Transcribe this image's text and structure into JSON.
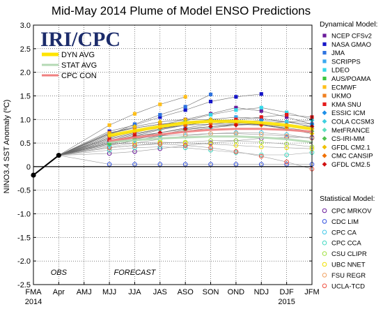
{
  "chart_data": {
    "type": "line",
    "title": "Mid-May 2014 Plume of Model ENSO Predictions",
    "ylabel": "NINO3.4 SST Anomaly (ºC)",
    "logo": "IRI/CPC",
    "ylim": [
      -2.5,
      3.0
    ],
    "yticks": [
      "3.0",
      "2.5",
      "2.0",
      "1.5",
      "1.0",
      "0.5",
      "0",
      "-0.5",
      "-1.0",
      "-1.5",
      "-2.0",
      "-2.5"
    ],
    "ytick_values": [
      3.0,
      2.5,
      2.0,
      1.5,
      1.0,
      0.5,
      0,
      -0.5,
      -1.0,
      -1.5,
      -2.0,
      -2.5
    ],
    "categories": [
      "FMA",
      "Apr",
      "AMJ",
      "MJJ",
      "JJA",
      "JAS",
      "ASO",
      "SON",
      "OND",
      "NDJ",
      "DJF",
      "JFM"
    ],
    "year_labels": [
      {
        "label": "2014",
        "index": 0
      },
      {
        "label": "2015",
        "index": 10
      }
    ],
    "phase_labels": [
      {
        "label": "OBS",
        "index": 1
      },
      {
        "label": "FORECAST",
        "index": 4
      }
    ],
    "grid": true,
    "legend_position": "right",
    "observed": {
      "name": "OBS",
      "x_index": [
        0,
        1
      ],
      "values": [
        -0.18,
        0.24
      ]
    },
    "averages": [
      {
        "name": "DYN AVG",
        "color": "#ffe400",
        "values": [
          0.66,
          0.76,
          0.85,
          0.93,
          0.96,
          0.96,
          0.93,
          0.88,
          0.8
        ]
      },
      {
        "name": "STAT AVG",
        "color": "#b4d9b4",
        "values": [
          0.52,
          0.56,
          0.6,
          0.62,
          0.64,
          0.64,
          0.62,
          0.58,
          0.52
        ]
      },
      {
        "name": "CPC CON",
        "color": "#f08080",
        "values": [
          0.55,
          0.62,
          0.68,
          0.74,
          0.78,
          0.8,
          0.8,
          0.78,
          0.74
        ]
      }
    ],
    "dynamical_header": "Dynamical Model:",
    "statistical_header": "Statistical Model:",
    "dynamical_models": [
      {
        "name": "NCEP CFSv2",
        "color": "#6a1b9a",
        "marker": "square",
        "values": [
          0.62,
          0.75,
          0.88,
          1.0,
          1.12,
          1.25,
          1.18,
          1.05,
          0.9
        ]
      },
      {
        "name": "NASA GMAO",
        "color": "#1515c8",
        "marker": "square",
        "values": [
          0.75,
          0.88,
          1.05,
          1.2,
          1.38,
          1.48,
          1.54,
          null,
          null
        ]
      },
      {
        "name": "JMA",
        "color": "#2f74e0",
        "marker": "square",
        "values": [
          0.68,
          0.9,
          1.1,
          1.27,
          1.53,
          null,
          null,
          null,
          null
        ]
      },
      {
        "name": "SCRIPPS",
        "color": "#3aa8f0",
        "marker": "square",
        "values": [
          0.55,
          0.68,
          0.8,
          0.92,
          1.0,
          1.05,
          1.02,
          0.95,
          0.85
        ]
      },
      {
        "name": "LDEO",
        "color": "#36d8e8",
        "marker": "square",
        "values": [
          0.6,
          0.72,
          0.85,
          0.97,
          1.1,
          1.2,
          1.25,
          1.15,
          1.0
        ]
      },
      {
        "name": "AUS/POAMA",
        "color": "#3cc43c",
        "marker": "square",
        "values": [
          0.7,
          0.82,
          0.9,
          0.95,
          0.98,
          0.95,
          0.9,
          0.8,
          null
        ]
      },
      {
        "name": "ECMWF",
        "color": "#ffbf1a",
        "marker": "square",
        "values": [
          0.88,
          1.12,
          1.32,
          1.48,
          null,
          null,
          null,
          null,
          null
        ]
      },
      {
        "name": "UKMO",
        "color": "#f08020",
        "marker": "square",
        "values": [
          0.72,
          0.82,
          0.9,
          0.92,
          0.94,
          0.92,
          0.9,
          null,
          null
        ]
      },
      {
        "name": "KMA SNU",
        "color": "#e41a1a",
        "marker": "square",
        "values": [
          0.58,
          0.7,
          0.8,
          0.88,
          0.95,
          1.0,
          1.05,
          1.1,
          1.05
        ]
      },
      {
        "name": "ESSIC ICM",
        "color": "#1e8fe8",
        "marker": "diamond",
        "values": [
          0.52,
          0.62,
          0.72,
          0.82,
          0.9,
          0.95,
          0.98,
          0.95,
          0.9
        ]
      },
      {
        "name": "COLA CCSM3",
        "color": "#40d0e0",
        "marker": "diamond",
        "values": [
          0.45,
          0.55,
          0.65,
          0.75,
          0.82,
          0.88,
          0.92,
          0.95,
          0.98
        ]
      },
      {
        "name": "MetFRANCE",
        "color": "#60e0c0",
        "marker": "diamond",
        "values": [
          0.5,
          0.65,
          0.78,
          0.88,
          0.95,
          null,
          null,
          null,
          null
        ]
      },
      {
        "name": "CS-IRI-MM",
        "color": "#50c050",
        "marker": "diamond",
        "values": [
          0.48,
          0.58,
          0.68,
          0.78,
          0.85,
          0.9,
          0.88,
          0.82,
          0.75
        ]
      },
      {
        "name": "GFDL CM2.1",
        "color": "#f0c000",
        "marker": "diamond",
        "values": [
          0.7,
          0.85,
          0.95,
          1.0,
          1.0,
          0.95,
          0.88,
          0.8,
          0.7
        ]
      },
      {
        "name": "CMC CANSIP",
        "color": "#f07000",
        "marker": "diamond",
        "values": [
          0.65,
          0.75,
          0.82,
          0.88,
          0.9,
          0.9,
          0.88,
          0.85,
          0.8
        ]
      },
      {
        "name": "GFDL CM2.5",
        "color": "#d01010",
        "marker": "diamond",
        "values": [
          0.55,
          0.65,
          0.72,
          0.8,
          0.85,
          0.88,
          0.9,
          0.88,
          0.85
        ]
      }
    ],
    "statistical_models": [
      {
        "name": "CPC MRKOV",
        "color": "#6a1b9a",
        "marker": "circle",
        "values": [
          0.28,
          0.32,
          0.38,
          0.45,
          0.5,
          0.55,
          0.6,
          0.62,
          0.62
        ]
      },
      {
        "name": "CDC LIM",
        "color": "#3050e0",
        "marker": "circle",
        "values": [
          0.05,
          0.05,
          0.05,
          0.05,
          0.05,
          0.05,
          0.05,
          0.05,
          0.05
        ]
      },
      {
        "name": "CPC CA",
        "color": "#40c8e8",
        "marker": "circle",
        "values": [
          0.42,
          0.5,
          0.58,
          0.65,
          0.7,
          0.72,
          0.72,
          0.68,
          0.6
        ]
      },
      {
        "name": "CPC CCA",
        "color": "#40d8c0",
        "marker": "circle",
        "values": [
          0.35,
          0.4,
          0.42,
          0.4,
          0.35,
          0.3,
          0.25,
          0.25,
          0.3
        ]
      },
      {
        "name": "CSU CLIPR",
        "color": "#a0e040",
        "marker": "circle",
        "values": [
          0.4,
          0.45,
          0.5,
          0.52,
          0.55,
          0.55,
          0.52,
          0.48,
          0.42
        ]
      },
      {
        "name": "UBC NNET",
        "color": "#f0e000",
        "marker": "circle",
        "values": [
          0.48,
          0.5,
          0.52,
          0.5,
          0.48,
          0.45,
          0.42,
          0.4,
          0.38
        ]
      },
      {
        "name": "FSU REGR",
        "color": "#f0a060",
        "marker": "circle",
        "values": [
          0.52,
          0.6,
          0.65,
          0.68,
          0.7,
          0.7,
          0.68,
          0.65,
          0.6
        ]
      },
      {
        "name": "UCLA-TCD",
        "color": "#f05040",
        "marker": "circle",
        "values": [
          0.4,
          0.45,
          0.48,
          0.45,
          0.4,
          0.32,
          0.22,
          0.1,
          -0.05
        ]
      }
    ]
  }
}
